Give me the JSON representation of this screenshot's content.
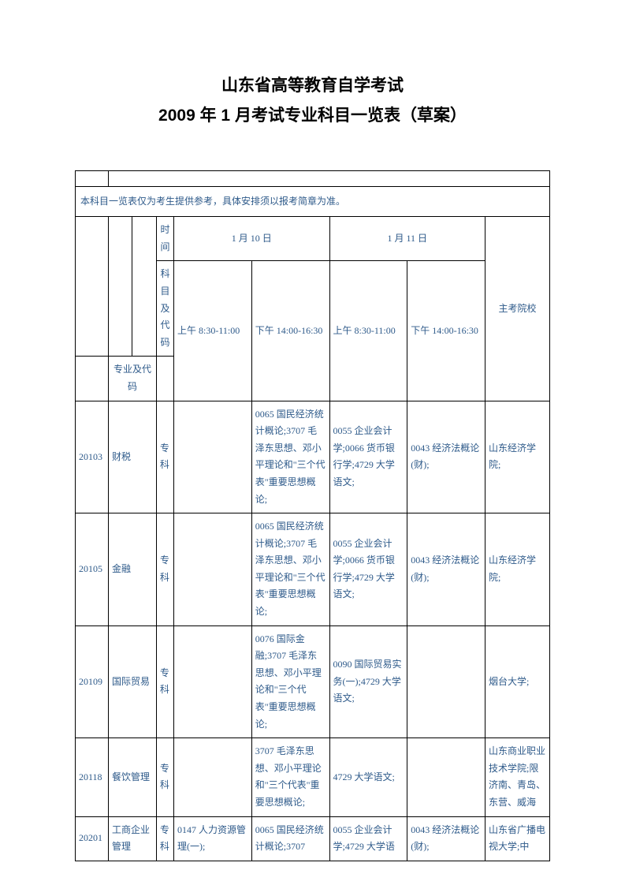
{
  "title": {
    "line1": "山东省高等教育自学考试",
    "line2": "2009 年 1 月考试专业科目一览表（草案）"
  },
  "notice": "本科目一览表仅为考生提供参考，具体安排须以报考简章为准。",
  "header": {
    "time_label": "时间",
    "subject_code_label": "科目及代码",
    "major_code_label": "专业及代码",
    "date1": "1 月 10 日",
    "date2": "1 月 11 日",
    "institution_label": "主考院校",
    "morning": "上午 8:30-11:00",
    "afternoon": "下午 14:00-16:30"
  },
  "rows": [
    {
      "code": "20103",
      "major": "财税",
      "level": "专科",
      "c1": "",
      "c2": "0065 国民经济统计概论;3707 毛泽东思想、邓小平理论和\"三个代表\"重要思想概论;",
      "c3": "0055 企业会计学;0066 货币银行学;4729 大学语文;",
      "c4": "0043 经济法概论(财);",
      "inst": "山东经济学院;"
    },
    {
      "code": "20105",
      "major": "金融",
      "level": "专科",
      "c1": "",
      "c2": "0065 国民经济统计概论;3707 毛泽东思想、邓小平理论和\"三个代表\"重要思想概论;",
      "c3": "0055 企业会计学;0066 货币银行学;4729 大学语文;",
      "c4": "0043 经济法概论(财);",
      "inst": "山东经济学院;"
    },
    {
      "code": "20109",
      "major": "国际贸易",
      "level": "专科",
      "c1": "",
      "c2": "0076 国际金融;3707 毛泽东思想、邓小平理论和\"三个代表\"重要思想概论;",
      "c3": "0090 国际贸易实务(一);4729 大学语文;",
      "c4": "",
      "inst": "烟台大学;"
    },
    {
      "code": "20118",
      "major": "餐饮管理",
      "level": "专科",
      "c1": "",
      "c2": "3707 毛泽东思想、邓小平理论和\"三个代表\"重要思想概论;",
      "c3": "4729 大学语文;",
      "c4": "",
      "inst": "山东商业职业技术学院;限济南、青岛、东营、威海"
    },
    {
      "code": "20201",
      "major": "工商企业管理",
      "level": "专科",
      "c1": "0147 人力资源管理(一);",
      "c2": "0065 国民经济统计概论;3707",
      "c3": "0055 企业会计学;4729 大学语",
      "c4": "0043 经济法概论(财);",
      "inst": "山东省广播电视大学;中"
    }
  ],
  "style": {
    "text_color": "#2e5a8a",
    "border_color": "#000000",
    "background_color": "#ffffff",
    "title_fontsize": 21,
    "body_fontsize": 12
  }
}
